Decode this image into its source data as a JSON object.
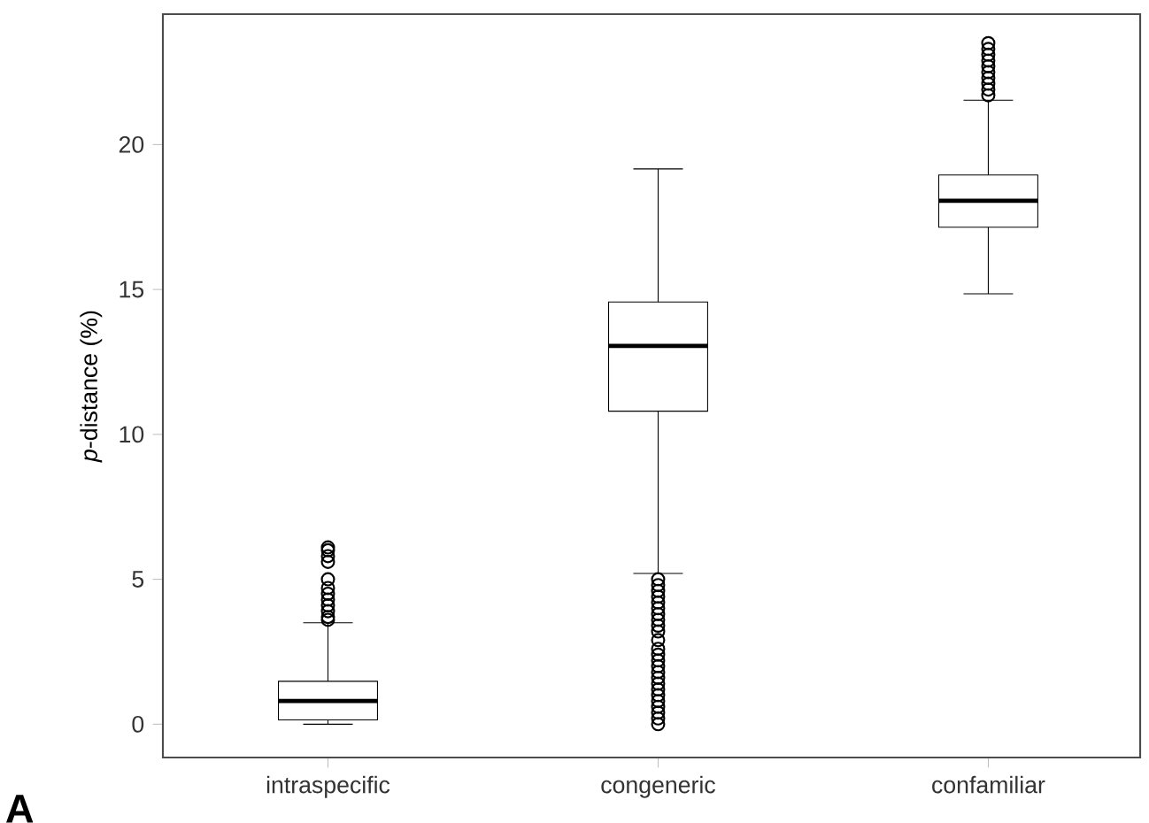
{
  "chart_data": {
    "type": "box",
    "ylabel": "*p*-distance (%)",
    "categories": [
      "intraspecific",
      "congeneric",
      "confamiliar"
    ],
    "boxes": [
      {
        "low": 0,
        "q1": 0.15,
        "median": 0.8,
        "q3": 1.48,
        "high": 3.5,
        "outliers": [
          3.6,
          3.7,
          3.9,
          4.1,
          4.3,
          4.5,
          4.7,
          5.0,
          5.6,
          5.8,
          6.0,
          6.1
        ]
      },
      {
        "low": 5.2,
        "q1": 10.8,
        "median": 13.05,
        "q3": 14.57,
        "high": 19.16,
        "outliers": [
          0,
          0.2,
          0.4,
          0.6,
          0.8,
          1.0,
          1.2,
          1.4,
          1.6,
          1.8,
          2.0,
          2.2,
          2.4,
          2.6,
          2.9,
          3.2,
          3.4,
          3.6,
          3.8,
          4.0,
          4.2,
          4.4,
          4.6,
          4.8,
          5.0
        ]
      },
      {
        "low": 14.85,
        "q1": 17.15,
        "median": 18.06,
        "q3": 18.95,
        "high": 21.53,
        "outliers": [
          21.7,
          21.9,
          22.1,
          22.3,
          22.5,
          22.7,
          22.9,
          23.1,
          23.3,
          23.5
        ]
      }
    ],
    "ylim": [
      -1.15,
      24.5
    ],
    "yticks": [
      0,
      5,
      10,
      15,
      20
    ],
    "marker": "circle",
    "grid": false,
    "annotations": [
      "A"
    ]
  }
}
